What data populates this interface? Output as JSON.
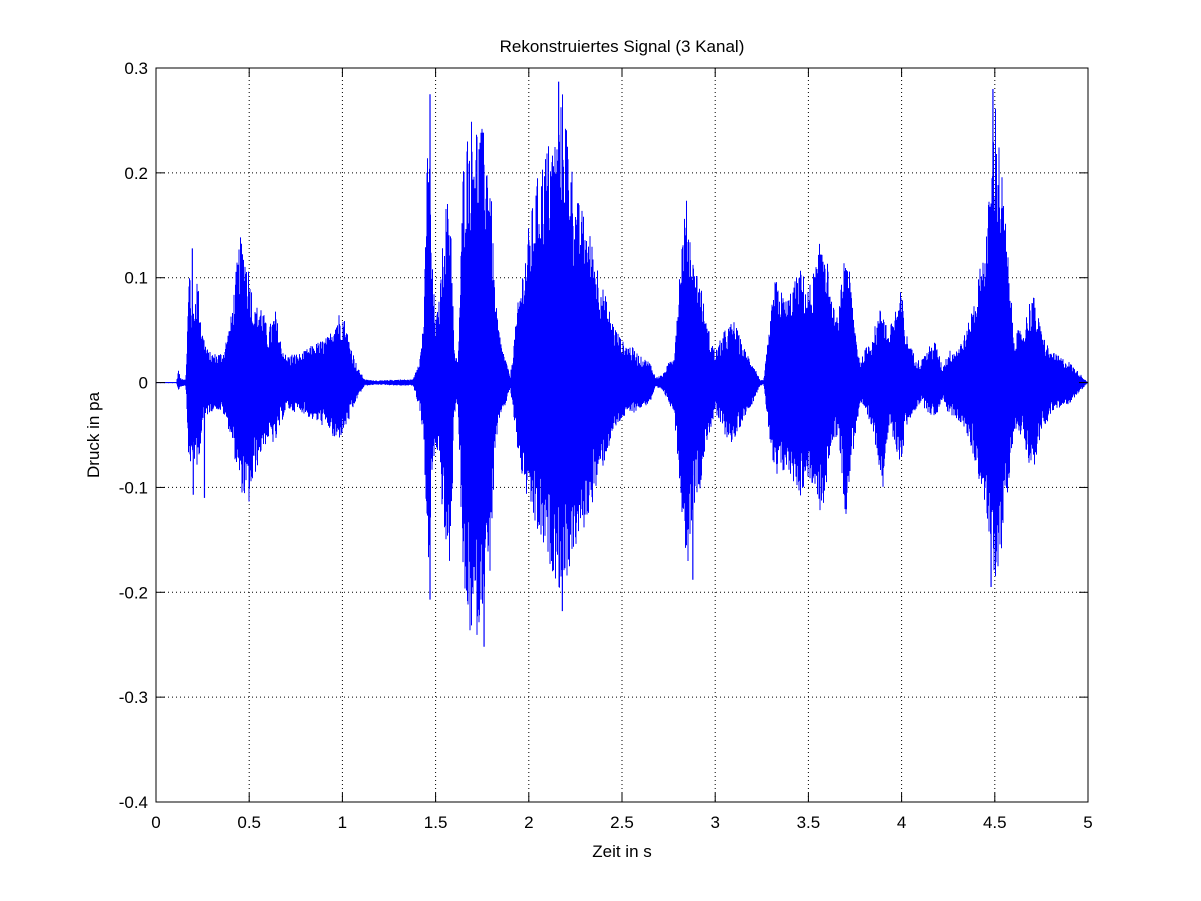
{
  "chart_data": {
    "type": "line",
    "title": "Rekonstruiertes Signal (3 Kanal)",
    "xlabel": "Zeit in s",
    "ylabel": "Druck in pa",
    "xlim": [
      0,
      5
    ],
    "ylim": [
      -0.4,
      0.3
    ],
    "xticks": [
      0,
      0.5,
      1,
      1.5,
      2,
      2.5,
      3,
      3.5,
      4,
      4.5,
      5
    ],
    "xtick_labels": [
      "0",
      "0.5",
      "1",
      "1.5",
      "2",
      "2.5",
      "3",
      "3.5",
      "4",
      "4.5",
      "5"
    ],
    "yticks": [
      -0.4,
      -0.3,
      -0.2,
      -0.1,
      0,
      0.1,
      0.2,
      0.3
    ],
    "ytick_labels": [
      "-0.4",
      "-0.3",
      "-0.2",
      "-0.1",
      "0",
      "0.1",
      "0.2",
      "0.3"
    ],
    "grid": true,
    "line_color": "#0000ff",
    "series": [
      {
        "envelope": {
          "t": [
            0.0,
            0.11,
            0.12,
            0.13,
            0.16,
            0.18,
            0.19,
            0.2,
            0.22,
            0.25,
            0.28,
            0.32,
            0.36,
            0.4,
            0.45,
            0.48,
            0.5,
            0.53,
            0.56,
            0.6,
            0.64,
            0.67,
            0.7,
            0.73,
            0.78,
            0.83,
            0.88,
            0.93,
            0.96,
            1.0,
            1.04,
            1.08,
            1.12,
            1.2,
            1.3,
            1.38,
            1.42,
            1.44,
            1.46,
            1.48,
            1.5,
            1.52,
            1.55,
            1.58,
            1.6,
            1.62,
            1.65,
            1.68,
            1.7,
            1.73,
            1.76,
            1.79,
            1.82,
            1.85,
            1.88,
            1.9,
            1.95,
            2.0,
            2.05,
            2.1,
            2.15,
            2.18,
            2.2,
            2.25,
            2.3,
            2.35,
            2.4,
            2.45,
            2.5,
            2.55,
            2.6,
            2.65,
            2.68,
            2.72,
            2.78,
            2.82,
            2.85,
            2.88,
            2.92,
            2.95,
            3.0,
            3.05,
            3.1,
            3.15,
            3.2,
            3.24,
            3.26,
            3.32,
            3.35,
            3.38,
            3.42,
            3.46,
            3.5,
            3.55,
            3.58,
            3.62,
            3.66,
            3.7,
            3.73,
            3.76,
            3.78,
            3.8,
            3.85,
            3.9,
            3.93,
            3.96,
            4.0,
            4.02,
            4.06,
            4.1,
            4.15,
            4.18,
            4.22,
            4.25,
            4.3,
            4.35,
            4.4,
            4.45,
            4.48,
            4.5,
            4.53,
            4.56,
            4.6,
            4.65,
            4.7,
            4.75,
            4.8,
            4.85,
            4.9,
            4.95,
            5.0
          ],
          "upper": [
            0.0,
            0.0,
            0.013,
            0.005,
            0.003,
            0.125,
            0.08,
            0.07,
            0.105,
            0.05,
            0.03,
            0.028,
            0.03,
            0.06,
            0.14,
            0.13,
            0.11,
            0.07,
            0.08,
            0.05,
            0.07,
            0.04,
            0.025,
            0.028,
            0.028,
            0.035,
            0.04,
            0.045,
            0.065,
            0.07,
            0.04,
            0.015,
            0.003,
            0.002,
            0.003,
            0.003,
            0.03,
            0.08,
            0.27,
            0.12,
            0.06,
            0.08,
            0.17,
            0.18,
            0.03,
            0.02,
            0.22,
            0.25,
            0.26,
            0.25,
            0.24,
            0.22,
            0.08,
            0.04,
            0.02,
            0.005,
            0.09,
            0.15,
            0.2,
            0.23,
            0.24,
            0.28,
            0.26,
            0.18,
            0.16,
            0.13,
            0.09,
            0.06,
            0.04,
            0.035,
            0.025,
            0.02,
            0.005,
            0.008,
            0.03,
            0.14,
            0.18,
            0.12,
            0.1,
            0.06,
            0.03,
            0.05,
            0.06,
            0.035,
            0.02,
            0.003,
            0.002,
            0.1,
            0.09,
            0.08,
            0.095,
            0.11,
            0.09,
            0.12,
            0.16,
            0.08,
            0.06,
            0.14,
            0.09,
            0.04,
            0.02,
            0.03,
            0.05,
            0.08,
            0.045,
            0.07,
            0.09,
            0.05,
            0.03,
            0.02,
            0.035,
            0.04,
            0.015,
            0.03,
            0.035,
            0.05,
            0.09,
            0.14,
            0.2,
            0.28,
            0.22,
            0.15,
            0.05,
            0.05,
            0.09,
            0.05,
            0.03,
            0.025,
            0.02,
            0.01,
            0.0
          ],
          "lower": [
            0.0,
            0.0,
            -0.008,
            -0.004,
            -0.003,
            -0.095,
            -0.08,
            -0.07,
            -0.09,
            -0.04,
            -0.03,
            -0.025,
            -0.03,
            -0.05,
            -0.1,
            -0.115,
            -0.118,
            -0.09,
            -0.07,
            -0.055,
            -0.06,
            -0.04,
            -0.025,
            -0.028,
            -0.028,
            -0.035,
            -0.04,
            -0.045,
            -0.06,
            -0.05,
            -0.035,
            -0.015,
            -0.003,
            -0.002,
            -0.003,
            -0.003,
            -0.03,
            -0.07,
            -0.2,
            -0.1,
            -0.06,
            -0.08,
            -0.16,
            -0.18,
            -0.03,
            -0.02,
            -0.21,
            -0.24,
            -0.25,
            -0.24,
            -0.2,
            -0.19,
            -0.07,
            -0.03,
            -0.02,
            -0.005,
            -0.08,
            -0.12,
            -0.15,
            -0.17,
            -0.19,
            -0.21,
            -0.19,
            -0.16,
            -0.14,
            -0.11,
            -0.08,
            -0.05,
            -0.035,
            -0.03,
            -0.025,
            -0.02,
            -0.005,
            -0.008,
            -0.03,
            -0.12,
            -0.18,
            -0.12,
            -0.1,
            -0.06,
            -0.03,
            -0.05,
            -0.06,
            -0.035,
            -0.02,
            -0.003,
            -0.002,
            -0.1,
            -0.09,
            -0.085,
            -0.095,
            -0.11,
            -0.09,
            -0.12,
            -0.13,
            -0.06,
            -0.05,
            -0.13,
            -0.08,
            -0.04,
            -0.02,
            -0.03,
            -0.05,
            -0.1,
            -0.045,
            -0.06,
            -0.08,
            -0.045,
            -0.03,
            -0.02,
            -0.03,
            -0.035,
            -0.015,
            -0.03,
            -0.035,
            -0.05,
            -0.08,
            -0.12,
            -0.17,
            -0.19,
            -0.17,
            -0.12,
            -0.05,
            -0.05,
            -0.09,
            -0.05,
            -0.03,
            -0.025,
            -0.02,
            -0.01,
            0.0
          ]
        },
        "spikes": [
          {
            "t": 0.195,
            "value": 0.128
          },
          {
            "t": 0.2,
            "value": -0.107
          },
          {
            "t": 0.26,
            "value": -0.11
          },
          {
            "t": 1.47,
            "value": 0.275
          },
          {
            "t": 1.47,
            "value": -0.207
          },
          {
            "t": 1.76,
            "value": -0.252
          },
          {
            "t": 2.16,
            "value": 0.287
          },
          {
            "t": 2.18,
            "value": -0.218
          },
          {
            "t": 2.88,
            "value": -0.188
          },
          {
            "t": 4.49,
            "value": 0.28
          },
          {
            "t": 4.48,
            "value": -0.195
          }
        ]
      }
    ]
  }
}
